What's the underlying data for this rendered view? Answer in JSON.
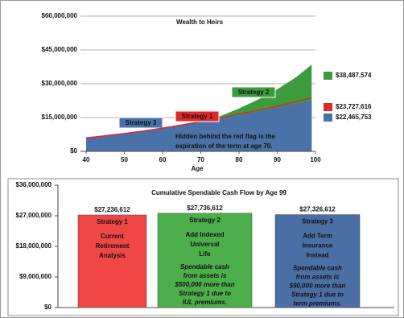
{
  "chart_data": [
    {
      "type": "area",
      "title": "Wealth to Heirs",
      "x_label": "Age",
      "x": [
        40,
        45,
        50,
        55,
        60,
        65,
        70,
        75,
        80,
        85,
        90,
        95,
        99
      ],
      "series": [
        {
          "name": "Strategy 2",
          "color": "#3d9b3d",
          "end_label": "$38,487,574",
          "values": [
            6000000,
            6900000,
            7900000,
            9000000,
            10300000,
            11700000,
            13300000,
            15600000,
            19000000,
            23000000,
            27500000,
            33000000,
            38487574
          ]
        },
        {
          "name": "Strategy 3",
          "color": "#4a72a8",
          "end_label": "$22,465,753",
          "values": [
            6000000,
            6900000,
            7900000,
            9000000,
            10200000,
            11500000,
            12900000,
            14400000,
            16000000,
            17700000,
            19500000,
            21200000,
            22465753
          ]
        },
        {
          "name": "Strategy 1",
          "color": "#e02828",
          "end_label": "$23,727,616",
          "values": [
            6000000,
            6900000,
            7900000,
            9000000,
            10300000,
            11700000,
            13200000,
            14800000,
            16500000,
            18200000,
            20000000,
            22000000,
            23727616
          ]
        }
      ],
      "annotation": [
        "Hidden behind the red flag is the",
        "expiration of the term at age 70."
      ],
      "xlim": [
        40,
        100
      ],
      "xticks": [
        40,
        50,
        60,
        70,
        80,
        90,
        100
      ],
      "ylim": [
        0,
        60000000
      ],
      "yticks": [
        {
          "value": 0,
          "label": "$0"
        },
        {
          "value": 15000000,
          "label": "$15,000,000"
        },
        {
          "value": 30000000,
          "label": "$30,000,000"
        },
        {
          "value": 45000000,
          "label": "$45,000,000"
        },
        {
          "value": 60000000,
          "label": "$60,000,000"
        }
      ],
      "grid": true
    },
    {
      "type": "bar",
      "title": "Cumulative Spendable Cash Flow by Age 99",
      "categories": [
        "Strategy 1",
        "Strategy 2",
        "Strategy 3"
      ],
      "descriptions": [
        [
          "Current",
          "Retirement",
          "Analysis"
        ],
        [
          "Add Indexed",
          "Universal",
          "Life"
        ],
        [
          "Add Term",
          "Insurance",
          "Instead"
        ]
      ],
      "notes": [
        null,
        [
          "Spendable cash",
          "from assets is",
          "$500,000 more than",
          "Strategy 1 due to",
          "IUL premiums."
        ],
        [
          "Spendable cash",
          "from assets is",
          "$90,000 more than",
          "Strategy 1 due to",
          "term premiums."
        ]
      ],
      "values": [
        27236612,
        27736612,
        27326612
      ],
      "value_labels": [
        "$27,236,612",
        "$27,736,612",
        "$27,326,612"
      ],
      "colors": [
        "#f04646",
        "#4caf4c",
        "#4a6fa5"
      ],
      "ylim": [
        0,
        36000000
      ],
      "yticks": [
        {
          "value": 0,
          "label": "$0"
        },
        {
          "value": 9000000,
          "label": "$9,000,000"
        },
        {
          "value": 18000000,
          "label": "$18,000,000"
        },
        {
          "value": 27000000,
          "label": "$27,000,000"
        },
        {
          "value": 36000000,
          "label": "$36,000,000"
        }
      ]
    }
  ]
}
